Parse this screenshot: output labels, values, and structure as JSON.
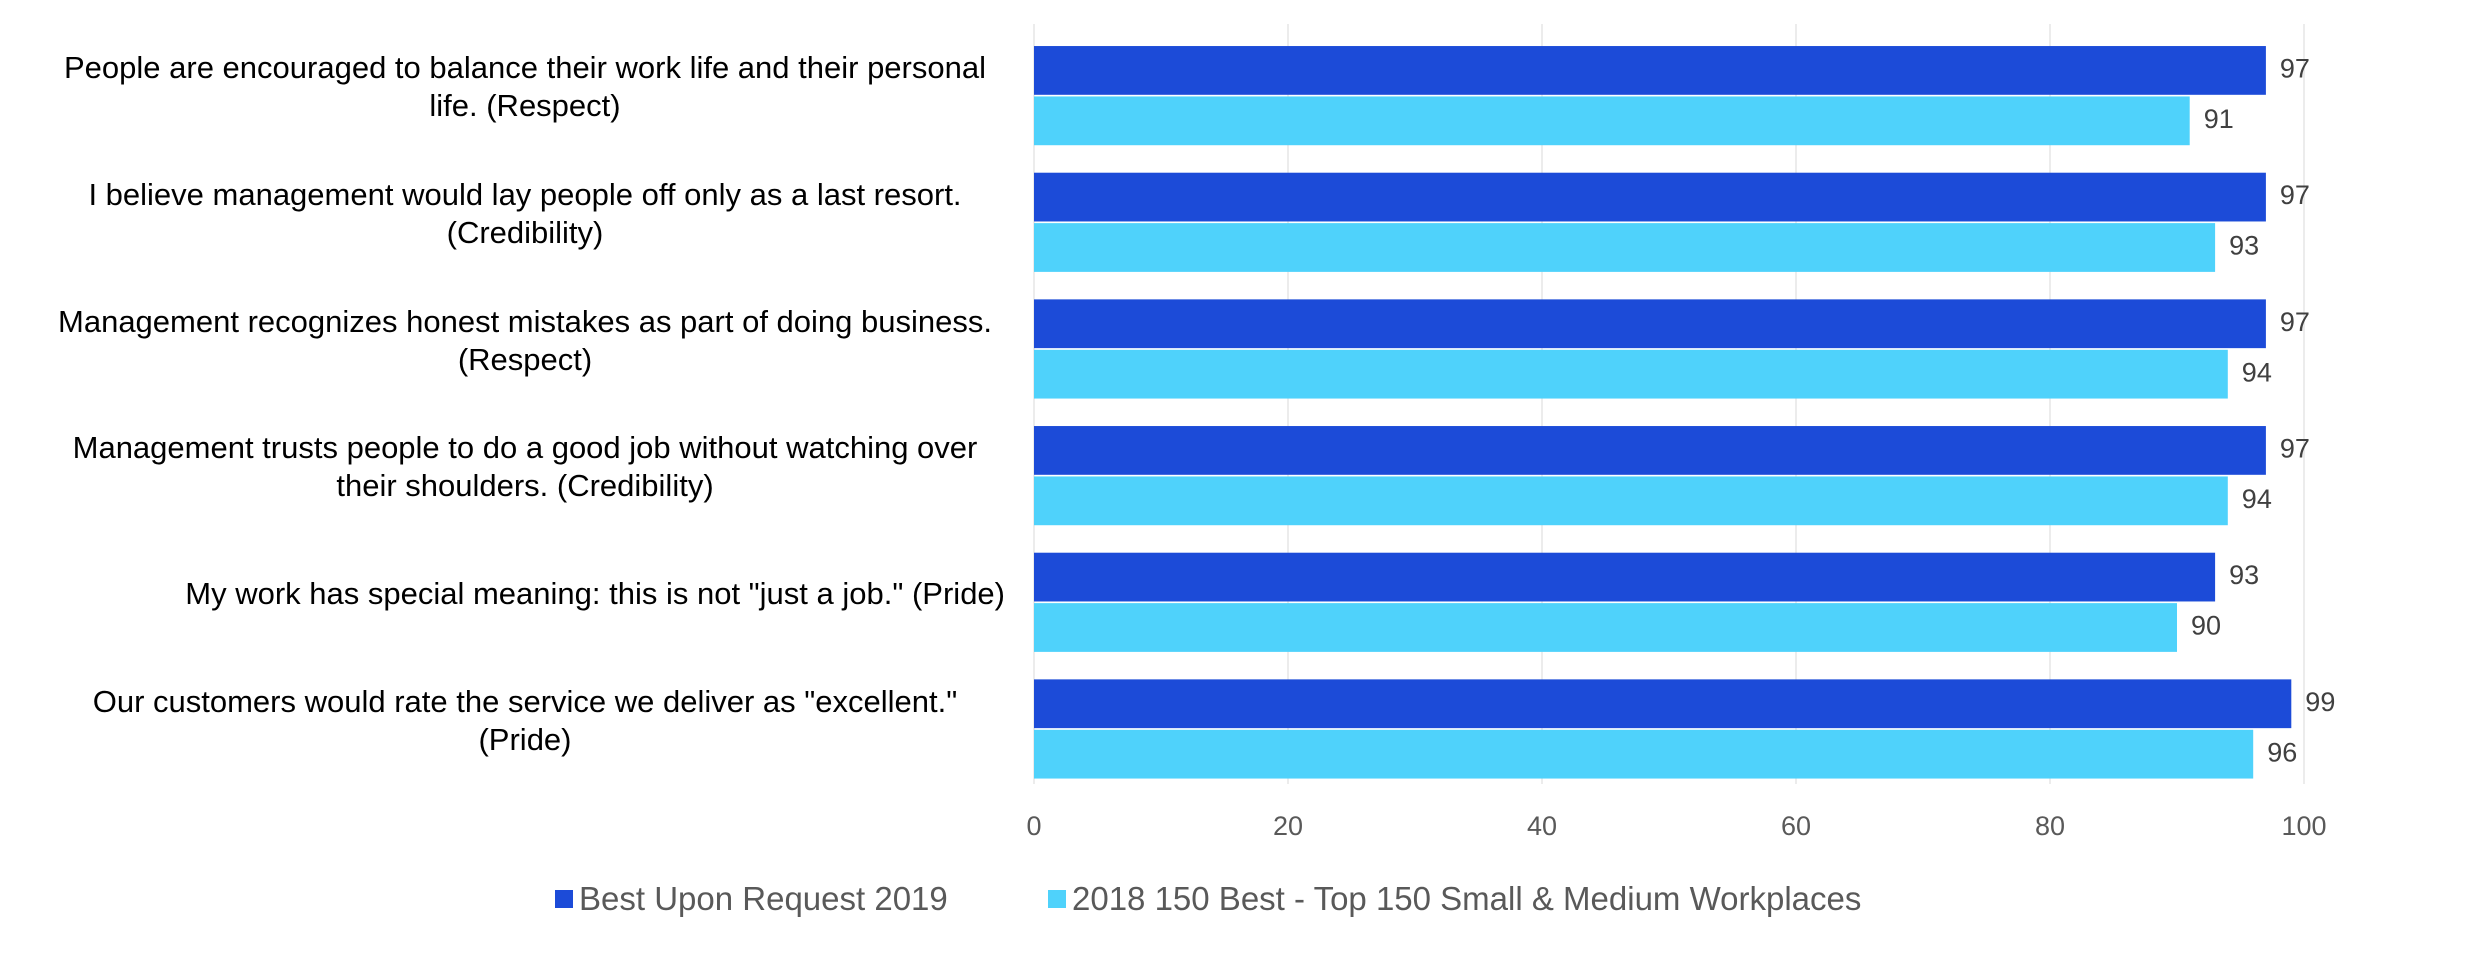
{
  "chart_data": {
    "type": "barh",
    "categories": [
      "People are encouraged to balance their work life and their personal life. (Respect)",
      "I believe management would lay people off only as a last resort. (Credibility)",
      "Management recognizes honest mistakes as part of doing business. (Respect)",
      "Management trusts people to do a good job without watching over their shoulders. (Credibility)",
      "My work has special meaning: this is not \"just a job.\" (Pride)",
      "Our customers would rate the service we deliver as \"excellent.\" (Pride)"
    ],
    "series": [
      {
        "name": "Best Upon Request 2019",
        "color": "#1c4bd8",
        "values": [
          97,
          97,
          97,
          97,
          93,
          99
        ]
      },
      {
        "name": "2018 150 Best - Top 150 Small & Medium Workplaces",
        "color": "#4fd2fb",
        "values": [
          91,
          93,
          94,
          94,
          90,
          96
        ]
      }
    ],
    "xlim": [
      0,
      100
    ],
    "xticks": [
      0,
      20,
      40,
      60,
      80,
      100
    ],
    "grid": true,
    "legend": "bottom"
  }
}
